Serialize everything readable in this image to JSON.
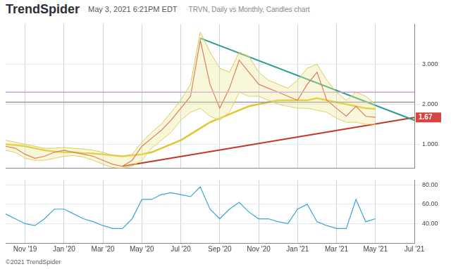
{
  "header": {
    "brand": "TrendSpider",
    "timestamp": "May 3, 2021 6:21PM EDT"
  },
  "footer": "©2021 TrendSpider",
  "chart_data": [
    {
      "type": "line",
      "title": "TRVN, Daily vs Monthly, Candles chart",
      "categories": [
        null,
        null,
        "Nov '19",
        null,
        null,
        null,
        "Jan '20",
        null,
        null,
        null,
        "Mar '20",
        null,
        null,
        null,
        "May '20",
        null,
        null,
        null,
        "Jul '20",
        null,
        null,
        null,
        "Sep '20",
        null,
        null,
        null,
        "Nov '20",
        null,
        null,
        null,
        "Jan '21",
        null,
        null,
        null,
        "Mar '21",
        null,
        null,
        null,
        "May '21",
        null,
        null,
        null,
        "Jul '21"
      ],
      "series": [
        {
          "color": "#d64541",
          "line_style": "solid",
          "values": [
            0.95,
            0.9,
            0.75,
            0.65,
            0.7,
            0.8,
            0.85,
            0.8,
            0.75,
            0.7,
            0.6,
            0.5,
            0.45,
            0.6,
            0.95,
            1.15,
            1.35,
            1.6,
            1.9,
            2.2,
            3.6,
            2.5,
            1.9,
            2.4,
            3.1,
            2.8,
            2.5,
            2.4,
            2.3,
            2.2,
            2.1,
            2.5,
            2.8,
            2.1,
            1.9,
            1.7,
            1.95,
            1.7,
            1.67,
            null,
            null,
            null,
            null
          ]
        },
        {
          "color": "#e0c72b",
          "line_style": "thick",
          "values": [
            1.0,
            0.98,
            0.95,
            0.9,
            0.85,
            0.82,
            0.8,
            0.8,
            0.78,
            0.77,
            0.75,
            0.72,
            0.7,
            0.72,
            0.75,
            0.8,
            0.9,
            1.0,
            1.1,
            1.25,
            1.4,
            1.55,
            1.65,
            1.75,
            1.85,
            1.95,
            2.0,
            2.05,
            2.1,
            2.1,
            2.1,
            2.1,
            2.15,
            2.1,
            2.05,
            2.0,
            1.95,
            1.9,
            1.88,
            null,
            null,
            null,
            null
          ]
        }
      ],
      "band": {
        "color": "#d8cc5a",
        "upper": [
          1.1,
          1.05,
          1.0,
          0.95,
          0.9,
          0.9,
          0.92,
          0.9,
          0.88,
          0.85,
          0.8,
          0.72,
          0.7,
          0.75,
          1.05,
          1.3,
          1.5,
          1.8,
          2.1,
          2.5,
          3.8,
          3.3,
          2.9,
          2.8,
          3.3,
          3.2,
          2.8,
          2.6,
          2.5,
          2.4,
          2.6,
          2.9,
          3.0,
          2.6,
          2.3,
          2.1,
          2.3,
          2.2,
          2.0,
          null,
          null,
          null,
          null
        ],
        "lower": [
          0.85,
          0.8,
          0.65,
          0.6,
          0.6,
          0.65,
          0.7,
          0.72,
          0.68,
          0.6,
          0.5,
          0.42,
          0.4,
          0.45,
          0.6,
          0.9,
          1.1,
          1.3,
          1.6,
          1.8,
          1.9,
          1.7,
          1.6,
          1.8,
          2.3,
          2.2,
          2.2,
          2.1,
          2.0,
          1.95,
          1.9,
          1.9,
          1.85,
          1.8,
          1.65,
          1.55,
          1.55,
          1.5,
          1.5,
          null,
          null,
          null,
          null
        ]
      },
      "trendlines": [
        {
          "color": "#2a9d8f",
          "values": [
            null,
            null,
            null,
            null,
            null,
            null,
            null,
            null,
            null,
            null,
            null,
            null,
            null,
            null,
            null,
            null,
            null,
            null,
            null,
            null,
            3.65,
            null,
            null,
            null,
            null,
            null,
            null,
            null,
            null,
            null,
            null,
            null,
            null,
            null,
            null,
            null,
            null,
            null,
            null,
            null,
            null,
            null,
            1.6
          ]
        },
        {
          "color": "#c0392b",
          "values": [
            null,
            null,
            null,
            null,
            null,
            null,
            null,
            null,
            null,
            null,
            null,
            null,
            0.45,
            null,
            null,
            null,
            null,
            null,
            null,
            null,
            null,
            null,
            null,
            null,
            null,
            null,
            null,
            null,
            null,
            null,
            null,
            null,
            null,
            null,
            null,
            null,
            null,
            null,
            null,
            null,
            null,
            null,
            1.67
          ]
        }
      ],
      "levels": [
        {
          "value": 2.3,
          "color": "#c9a0e6"
        },
        {
          "value": 2.05,
          "color": "#999999"
        }
      ],
      "price_label": 1.67,
      "price_label_color": "#d64541",
      "ylim": [
        0.4,
        4.0
      ],
      "yticks": [
        {
          "value": 1,
          "label": "1.000"
        },
        {
          "value": 2,
          "label": "2.000"
        },
        {
          "value": 3,
          "label": "3.000"
        }
      ],
      "grid": true,
      "tick_labels": "y"
    },
    {
      "type": "line",
      "categories": [
        null,
        null,
        "Nov '19",
        null,
        null,
        null,
        "Jan '20",
        null,
        null,
        null,
        "Mar '20",
        null,
        null,
        null,
        "May '20",
        null,
        null,
        null,
        "Jul '20",
        null,
        null,
        null,
        "Sep '20",
        null,
        null,
        null,
        "Nov '20",
        null,
        null,
        null,
        "Jan '21",
        null,
        null,
        null,
        "Mar '21",
        null,
        null,
        null,
        "May '21",
        null,
        null,
        null,
        "Jul '21"
      ],
      "series": [
        {
          "color": "#3aa6d6",
          "line_style": "solid",
          "values": [
            50,
            45,
            40,
            38,
            45,
            55,
            55,
            50,
            45,
            42,
            38,
            35,
            35,
            45,
            65,
            65,
            70,
            72,
            70,
            68,
            78,
            55,
            45,
            55,
            62,
            52,
            45,
            45,
            42,
            40,
            55,
            60,
            42,
            38,
            35,
            35,
            65,
            42,
            45,
            null,
            null,
            null,
            null
          ]
        }
      ],
      "ylim": [
        20,
        85
      ],
      "yticks": [
        {
          "value": 40,
          "label": "40.00"
        },
        {
          "value": 60,
          "label": "60.00"
        },
        {
          "value": 80,
          "label": "80.00"
        }
      ],
      "grid": true
    }
  ]
}
